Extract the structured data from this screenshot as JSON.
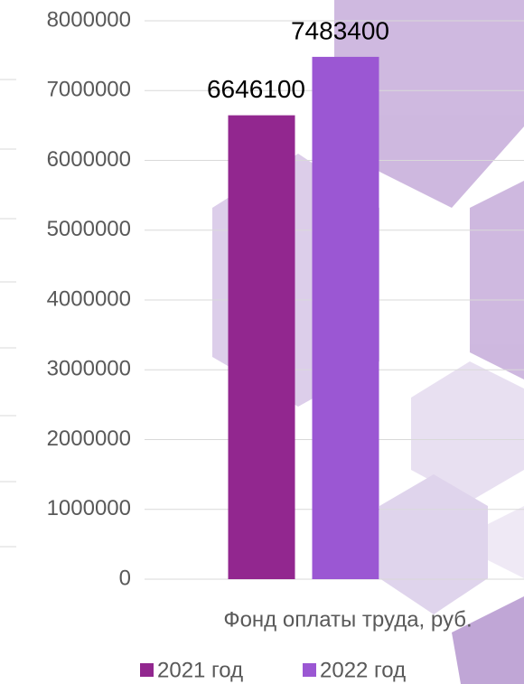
{
  "chart_data": {
    "type": "bar",
    "categories": [
      "Фонд оплаты труда, руб."
    ],
    "series": [
      {
        "name": "2021 год",
        "color": "#92278f",
        "values": [
          6646100
        ]
      },
      {
        "name": "2022 год",
        "color": "#9b57d3",
        "values": [
          7483400
        ]
      }
    ],
    "ylim": [
      0,
      8000000
    ],
    "yticks": [
      0,
      1000000,
      2000000,
      3000000,
      4000000,
      5000000,
      6000000,
      7000000,
      8000000
    ],
    "grid": true,
    "legend": "bottom"
  }
}
